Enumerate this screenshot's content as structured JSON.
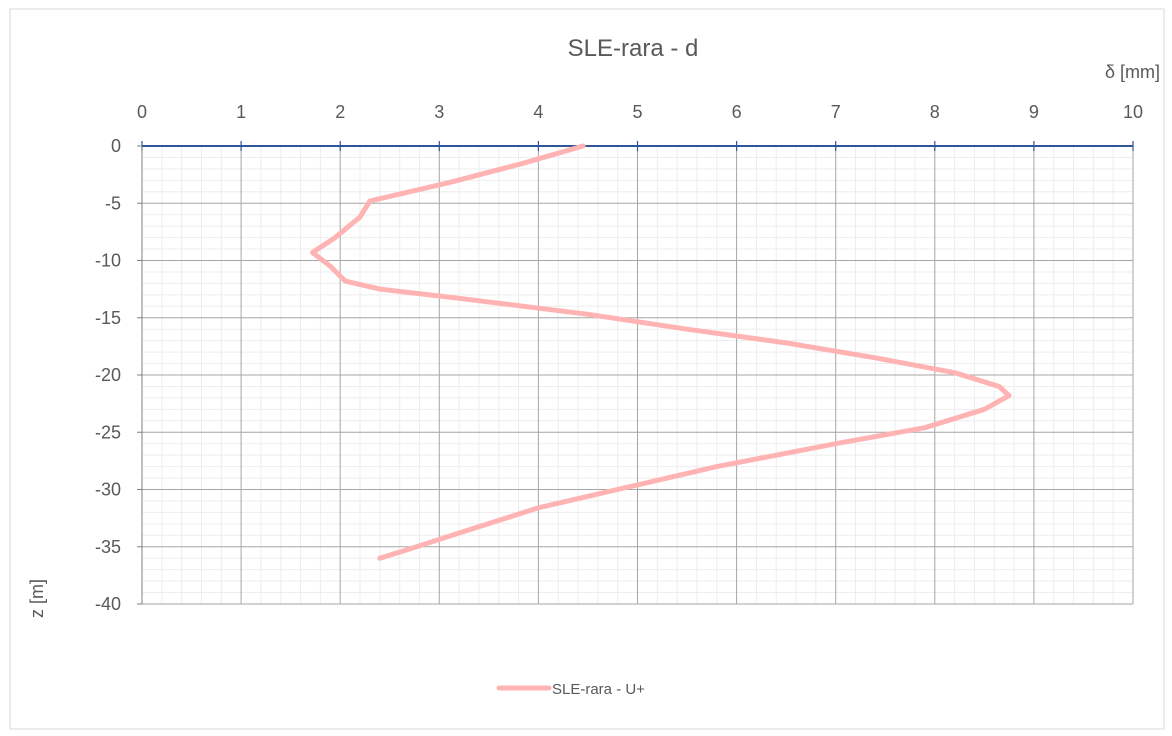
{
  "chart_data": {
    "type": "line",
    "title": "SLE-rara - d",
    "xlabel": "δ [mm]",
    "ylabel": "z [m]",
    "xlim": [
      0,
      10
    ],
    "ylim": [
      -40,
      0
    ],
    "x_ticks": [
      0,
      1,
      2,
      3,
      4,
      5,
      6,
      7,
      8,
      9,
      10
    ],
    "y_ticks": [
      0,
      -5,
      -10,
      -15,
      -20,
      -25,
      -30,
      -35,
      -40
    ],
    "x_axis_position": "top",
    "grid": true,
    "minor_grid": true,
    "legend": "bottom",
    "series": [
      {
        "name": "SLE-rara - U+",
        "color": "#ffb3b3",
        "points": [
          [
            4.45,
            0
          ],
          [
            3.85,
            -1.5
          ],
          [
            3.1,
            -3.2
          ],
          [
            2.6,
            -4.2
          ],
          [
            2.3,
            -4.8
          ],
          [
            2.2,
            -6.2
          ],
          [
            1.95,
            -8.0
          ],
          [
            1.72,
            -9.3
          ],
          [
            1.9,
            -10.5
          ],
          [
            2.05,
            -11.8
          ],
          [
            2.4,
            -12.5
          ],
          [
            3.2,
            -13.3
          ],
          [
            4.5,
            -14.7
          ],
          [
            5.5,
            -16.0
          ],
          [
            6.5,
            -17.2
          ],
          [
            7.4,
            -18.5
          ],
          [
            8.2,
            -19.8
          ],
          [
            8.65,
            -21.0
          ],
          [
            8.75,
            -21.8
          ],
          [
            8.5,
            -23.0
          ],
          [
            7.9,
            -24.6
          ],
          [
            7.0,
            -26.0
          ],
          [
            5.8,
            -28.0
          ],
          [
            5.0,
            -29.6
          ],
          [
            4.0,
            -31.6
          ],
          [
            3.2,
            -33.8
          ],
          [
            2.7,
            -35.2
          ],
          [
            2.4,
            -36.0
          ]
        ]
      }
    ]
  }
}
